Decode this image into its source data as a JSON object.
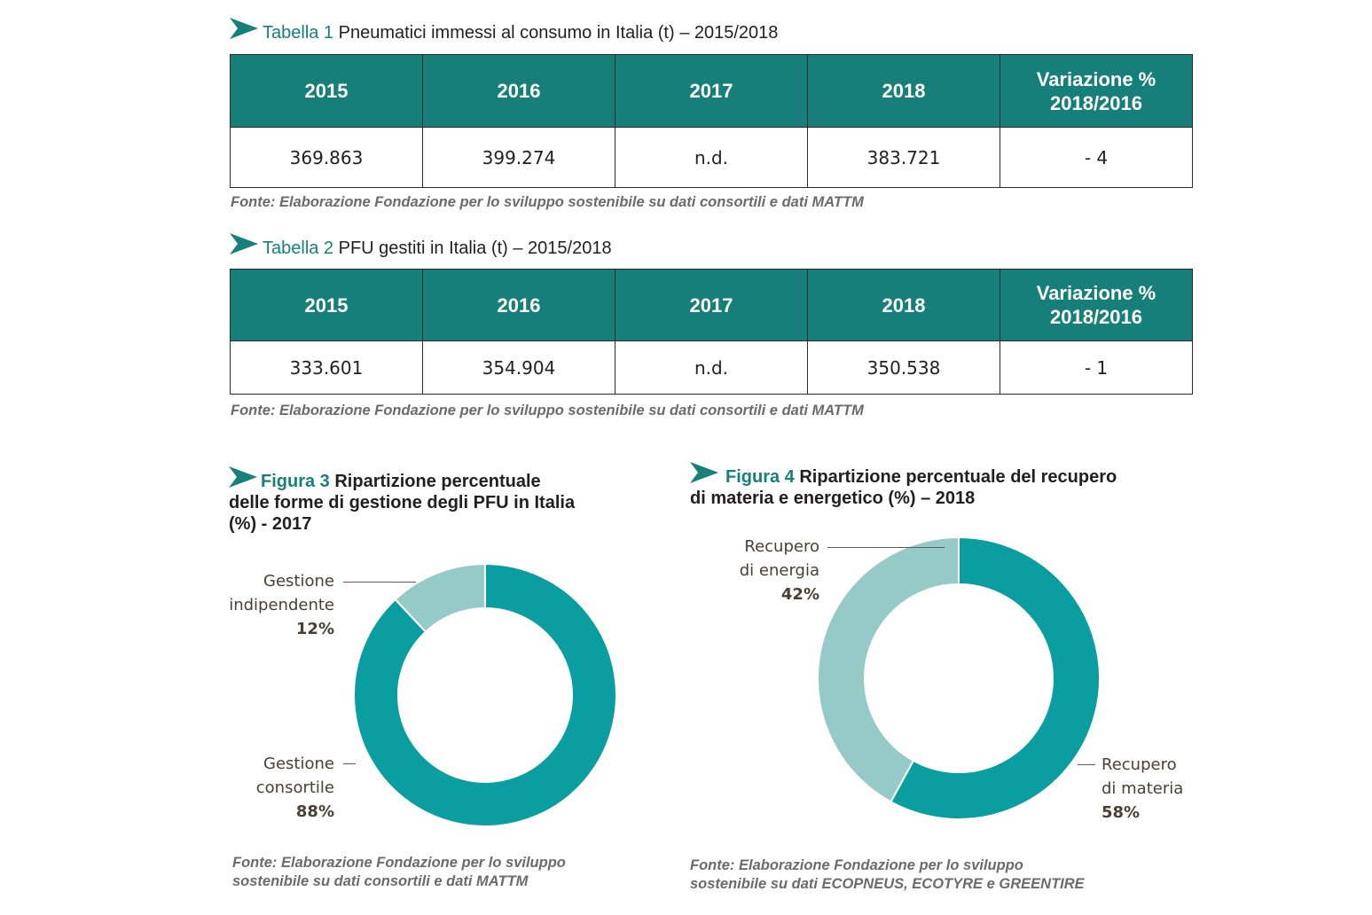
{
  "colors": {
    "teal_dark": "#167f7a",
    "teal": "#0a9ea0",
    "teal_light": "#96cac6",
    "accent_text": "#178078"
  },
  "icons": {
    "bullet": "chevron-arrow-icon"
  },
  "table1": {
    "label": "Tabella 1",
    "title": "Pneumatici immessi al consumo in Italia (t) – 2015/2018",
    "headers": [
      "2015",
      "2016",
      "2017",
      "2018"
    ],
    "header_var_line1": "Variazione %",
    "header_var_line2": "2018/2016",
    "values": [
      "369.863",
      "399.274",
      "n.d.",
      "383.721",
      "- 4"
    ],
    "source": "Fonte: Elaborazione Fondazione per lo sviluppo sostenibile su dati consortili e dati MATTM"
  },
  "table2": {
    "label": "Tabella 2",
    "title": "PFU gestiti in Italia (t) – 2015/2018",
    "headers": [
      "2015",
      "2016",
      "2017",
      "2018"
    ],
    "header_var_line1": "Variazione %",
    "header_var_line2": "2018/2016",
    "values": [
      "333.601",
      "354.904",
      "n.d.",
      "350.538",
      "- 1"
    ],
    "source": "Fonte: Elaborazione Fondazione per lo sviluppo sostenibile su dati consortili e dati MATTM"
  },
  "figure3": {
    "label": "Figura 3",
    "title_line1": "Ripartizione percentuale",
    "title_line2": "delle forme di gestione degli PFU in Italia",
    "title_line3": "(%) - 2017",
    "source_line1": "Fonte: Elaborazione Fondazione per lo sviluppo",
    "source_line2": "sostenibile su dati consortili e dati MATTM"
  },
  "figure4": {
    "label": "Figura 4",
    "title_line1": "Ripartizione percentuale del recupero",
    "title_line2": "di materia e energetico (%) – 2018",
    "source_line1": "Fonte: Elaborazione Fondazione per lo sviluppo",
    "source_line2": "sostenibile su dati ECOPNEUS, ECOTYRE e GREENTIRE"
  },
  "chart_data": [
    {
      "type": "table",
      "title": "Pneumatici immessi al consumo in Italia (t) – 2015/2018",
      "columns": [
        "2015",
        "2016",
        "2017",
        "2018",
        "Variazione % 2018/2016"
      ],
      "rows": [
        [
          "369.863",
          "399.274",
          "n.d.",
          "383.721",
          "- 4"
        ]
      ]
    },
    {
      "type": "table",
      "title": "PFU gestiti in Italia (t) – 2015/2018",
      "columns": [
        "2015",
        "2016",
        "2017",
        "2018",
        "Variazione % 2018/2016"
      ],
      "rows": [
        [
          "333.601",
          "354.904",
          "n.d.",
          "350.538",
          "- 1"
        ]
      ]
    },
    {
      "type": "pie",
      "title": "Ripartizione percentuale delle forme di gestione degli PFU in Italia (%) - 2017",
      "slices": [
        {
          "label_line1": "Gestione",
          "label_line2": "consortile",
          "value": 88,
          "pct_label": "88%",
          "color": "#0a9ea0"
        },
        {
          "label_line1": "Gestione",
          "label_line2": "indipendente",
          "value": 12,
          "pct_label": "12%",
          "color": "#96cac6"
        }
      ]
    },
    {
      "type": "pie",
      "title": "Ripartizione percentuale del recupero di materia e energetico (%) – 2018",
      "slices": [
        {
          "label_line1": "Recupero",
          "label_line2": "di materia",
          "value": 58,
          "pct_label": "58%",
          "color": "#0a9ea0"
        },
        {
          "label_line1": "Recupero",
          "label_line2": "di energia",
          "value": 42,
          "pct_label": "42%",
          "color": "#96cac6"
        }
      ]
    }
  ]
}
